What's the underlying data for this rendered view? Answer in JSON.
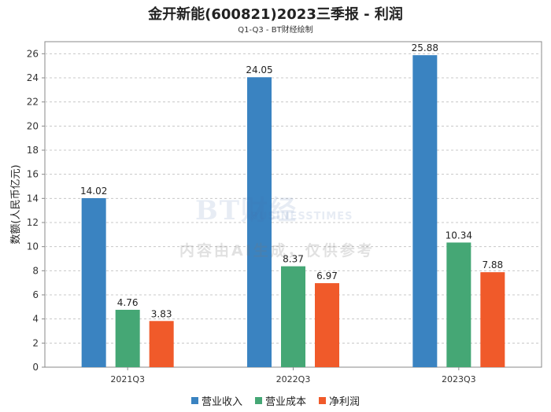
{
  "chart_data": {
    "type": "bar",
    "title": "金开新能(600821)2023三季报 - 利润",
    "subtitle": "Q1-Q3 - BT财经绘制",
    "xlabel": "",
    "ylabel": "数额(人民币亿元)",
    "ylim": [
      0,
      27
    ],
    "yticks": [
      0,
      2,
      4,
      6,
      8,
      10,
      12,
      14,
      16,
      18,
      20,
      22,
      24,
      26
    ],
    "grid": true,
    "legend_position": "bottom",
    "categories": [
      "2021Q3",
      "2022Q3",
      "2023Q3"
    ],
    "series": [
      {
        "name": "营业收入",
        "color": "#3a83c1",
        "values": [
          14.02,
          24.05,
          25.88
        ],
        "labels": [
          "14.02",
          "24.05",
          "25.88"
        ]
      },
      {
        "name": "营业成本",
        "color": "#45a775",
        "values": [
          4.76,
          8.37,
          10.34
        ],
        "labels": [
          "4.76",
          "8.37",
          "10.34"
        ]
      },
      {
        "name": "净利润",
        "color": "#f05a2a",
        "values": [
          3.83,
          6.97,
          7.88
        ],
        "labels": [
          "3.83",
          "6.97",
          "7.88"
        ]
      }
    ]
  },
  "watermark": {
    "logo": "BT财经",
    "sub": "BUSINESSTIMES",
    "text": "内容由AI生成，仅供参考"
  }
}
